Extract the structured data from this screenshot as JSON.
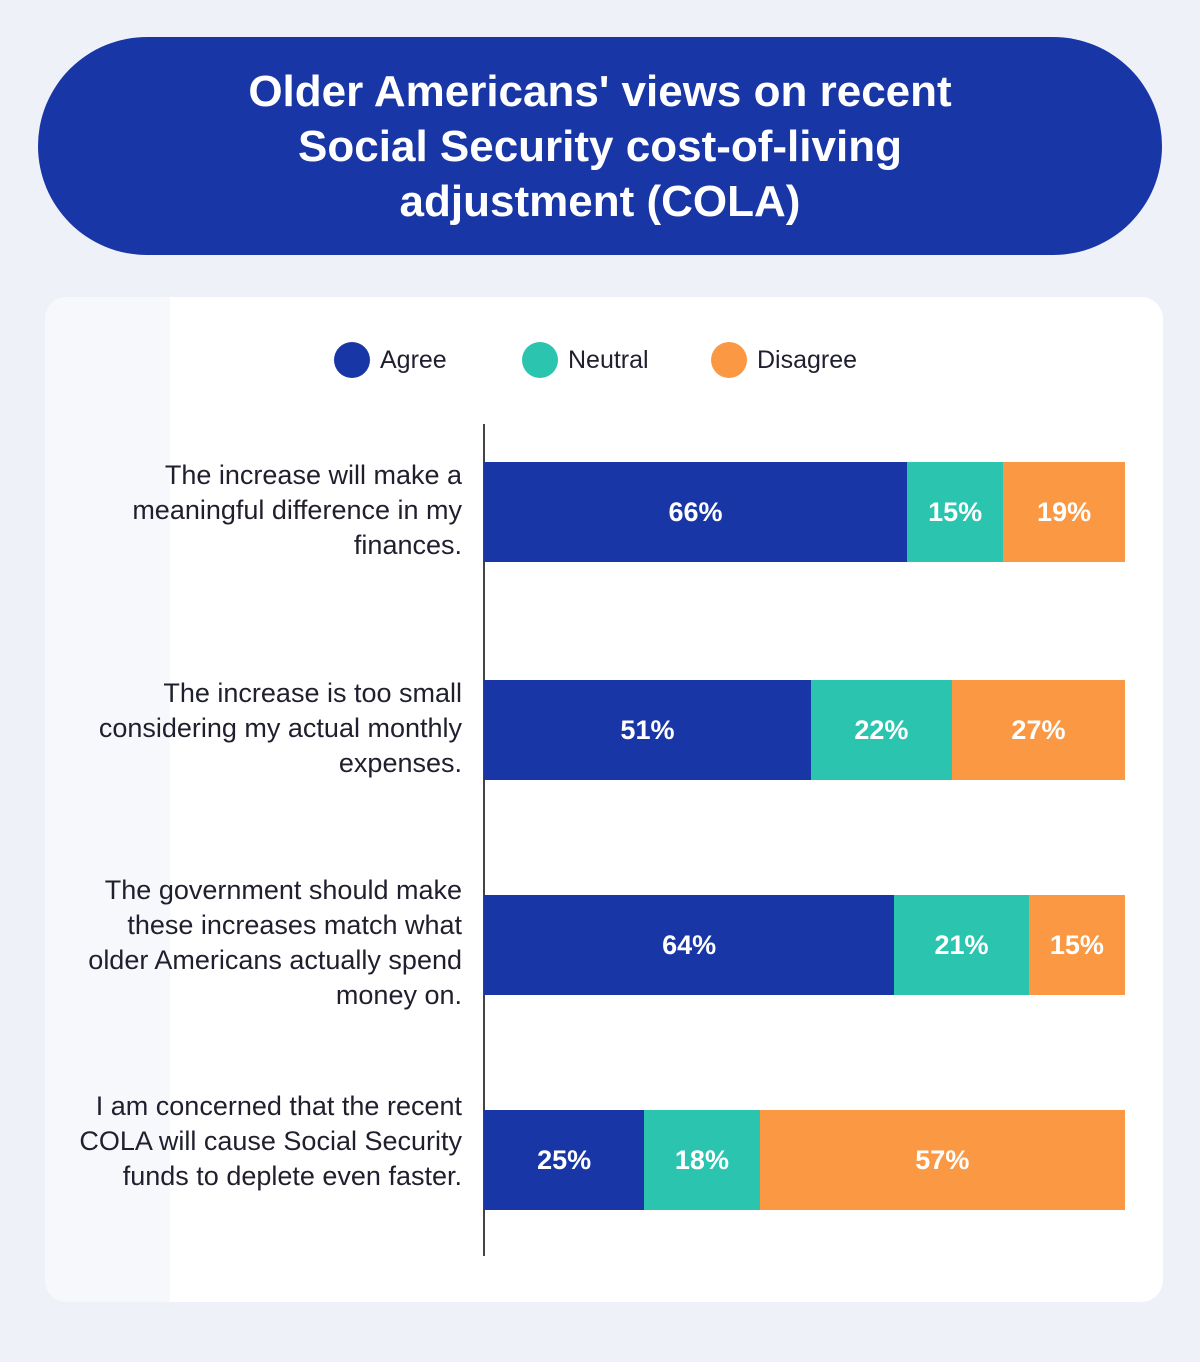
{
  "colors": {
    "agree": "#1836a6",
    "neutral": "#2ac4af",
    "disagree": "#fb9843"
  },
  "chart_data": {
    "type": "bar",
    "orientation": "horizontal",
    "stacked": true,
    "title": "Older Americans' views on recent Social Security cost-of-living adjustment (COLA)",
    "legend_position": "top",
    "categories": [
      "The increase will make a meaningful difference in my finances.",
      "The increase is too small considering my actual monthly expenses.",
      "The government should make these increases match what older Americans actually spend money on.",
      "I am concerned that the recent COLA will cause Social Security funds to deplete even faster."
    ],
    "series": [
      {
        "name": "Agree",
        "values": [
          66,
          51,
          64,
          25
        ]
      },
      {
        "name": "Neutral",
        "values": [
          15,
          22,
          21,
          18
        ]
      },
      {
        "name": "Disagree",
        "values": [
          19,
          27,
          15,
          57
        ]
      }
    ],
    "unit": "%",
    "xlim": [
      0,
      100
    ]
  }
}
